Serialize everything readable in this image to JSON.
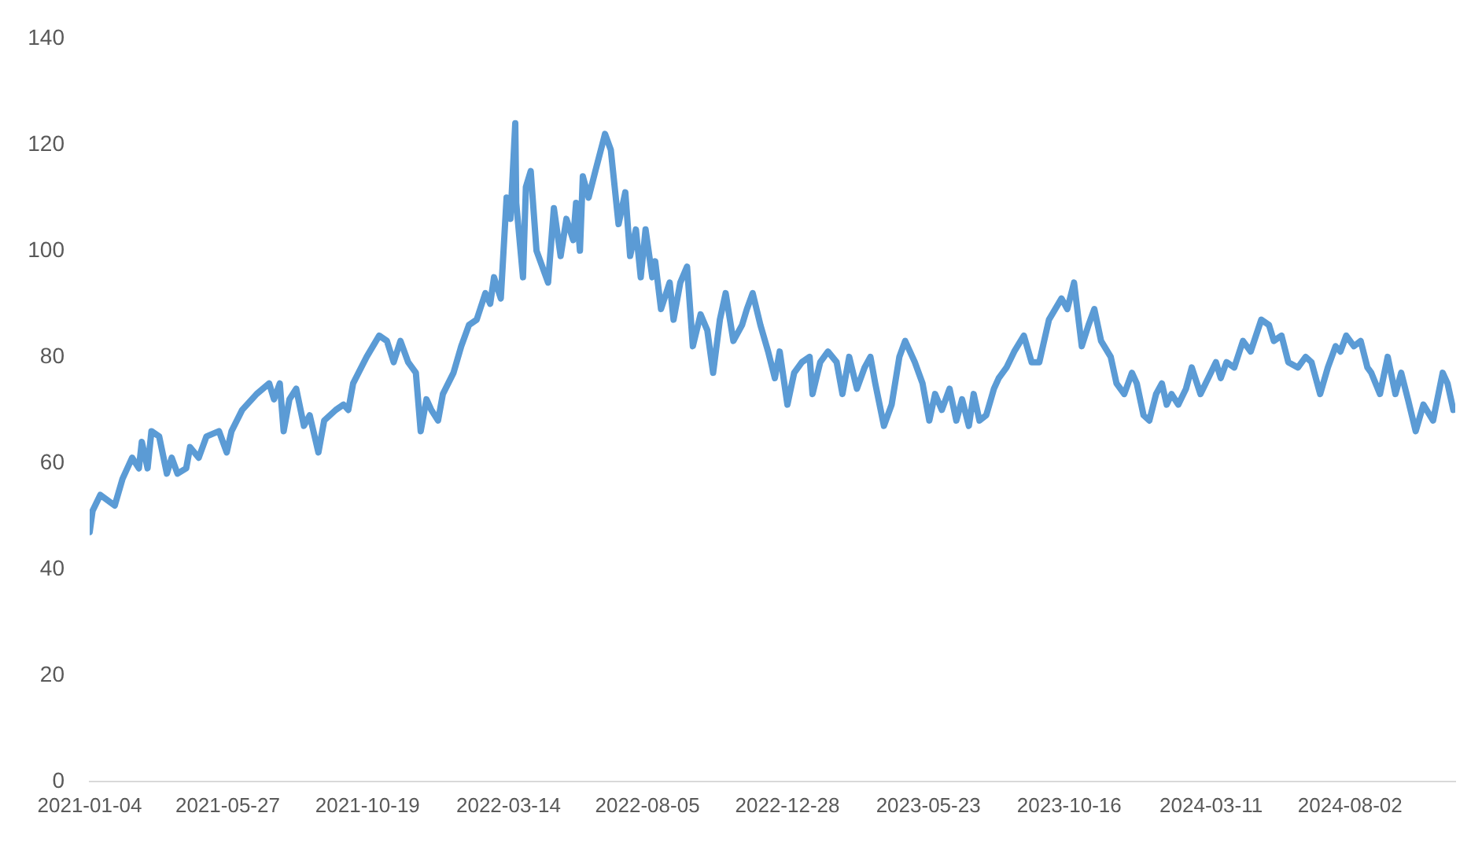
{
  "chart_data": {
    "type": "line",
    "color": "#5b9bd5",
    "marker": "none",
    "grid": false,
    "x": [
      "2021-01-04",
      "2021-01-07",
      "2021-01-15",
      "2021-01-30",
      "2021-02-07",
      "2021-02-17",
      "2021-02-24",
      "2021-02-27",
      "2021-03-05",
      "2021-03-09",
      "2021-03-17",
      "2021-03-25",
      "2021-03-30",
      "2021-04-05",
      "2021-04-14",
      "2021-04-18",
      "2021-04-27",
      "2021-05-05",
      "2021-05-18",
      "2021-05-26",
      "2021-05-31",
      "2021-06-11",
      "2021-06-26",
      "2021-07-09",
      "2021-07-14",
      "2021-07-20",
      "2021-07-24",
      "2021-07-30",
      "2021-08-06",
      "2021-08-14",
      "2021-08-20",
      "2021-08-29",
      "2021-09-04",
      "2021-09-16",
      "2021-09-24",
      "2021-09-29",
      "2021-10-04",
      "2021-10-18",
      "2021-10-31",
      "2021-11-08",
      "2021-11-15",
      "2021-11-22",
      "2021-11-30",
      "2021-12-08",
      "2021-12-13",
      "2021-12-19",
      "2021-12-24",
      "2021-12-31",
      "2022-01-05",
      "2022-01-16",
      "2022-01-24",
      "2022-02-01",
      "2022-02-09",
      "2022-02-18",
      "2022-02-23",
      "2022-02-27",
      "2022-03-06",
      "2022-03-12",
      "2022-03-16",
      "2022-03-21",
      "2022-03-22",
      "2022-03-29",
      "2022-04-01",
      "2022-04-06",
      "2022-04-12",
      "2022-04-24",
      "2022-04-30",
      "2022-05-07",
      "2022-05-13",
      "2022-05-20",
      "2022-05-23",
      "2022-05-27",
      "2022-05-30",
      "2022-06-05",
      "2022-06-12",
      "2022-06-22",
      "2022-06-28",
      "2022-07-06",
      "2022-07-13",
      "2022-07-18",
      "2022-07-24",
      "2022-07-29",
      "2022-08-03",
      "2022-08-10",
      "2022-08-13",
      "2022-08-19",
      "2022-08-28",
      "2022-09-01",
      "2022-09-08",
      "2022-09-15",
      "2022-09-21",
      "2022-09-29",
      "2022-10-06",
      "2022-10-12",
      "2022-10-19",
      "2022-10-25",
      "2022-11-02",
      "2022-11-11",
      "2022-11-16",
      "2022-11-22",
      "2022-11-30",
      "2022-12-08",
      "2022-12-15",
      "2022-12-20",
      "2022-12-28",
      "2023-01-04",
      "2023-01-12",
      "2023-01-20",
      "2023-01-23",
      "2023-01-31",
      "2023-02-08",
      "2023-02-17",
      "2023-02-23",
      "2023-03-02",
      "2023-03-10",
      "2023-03-18",
      "2023-03-24",
      "2023-03-29",
      "2023-04-07",
      "2023-04-15",
      "2023-04-23",
      "2023-04-29",
      "2023-05-09",
      "2023-05-17",
      "2023-05-24",
      "2023-05-30",
      "2023-06-06",
      "2023-06-14",
      "2023-06-21",
      "2023-06-27",
      "2023-07-04",
      "2023-07-09",
      "2023-07-15",
      "2023-07-22",
      "2023-07-30",
      "2023-08-04",
      "2023-08-12",
      "2023-08-20",
      "2023-08-30",
      "2023-09-07",
      "2023-09-15",
      "2023-09-25",
      "2023-10-08",
      "2023-10-14",
      "2023-10-21",
      "2023-10-29",
      "2023-11-05",
      "2023-11-11",
      "2023-11-18",
      "2023-11-28",
      "2023-12-04",
      "2023-12-12",
      "2023-12-20",
      "2023-12-25",
      "2024-01-01",
      "2024-01-07",
      "2024-01-14",
      "2024-01-20",
      "2024-01-25",
      "2024-01-30",
      "2024-02-06",
      "2024-02-14",
      "2024-02-20",
      "2024-02-29",
      "2024-03-08",
      "2024-03-16",
      "2024-03-21",
      "2024-03-27",
      "2024-04-04",
      "2024-04-13",
      "2024-04-21",
      "2024-05-02",
      "2024-05-10",
      "2024-05-15",
      "2024-05-23",
      "2024-05-30",
      "2024-06-09",
      "2024-06-17",
      "2024-06-23",
      "2024-07-02",
      "2024-07-10",
      "2024-07-18",
      "2024-07-23",
      "2024-07-29",
      "2024-08-06",
      "2024-08-13",
      "2024-08-20",
      "2024-08-24",
      "2024-09-02",
      "2024-09-10",
      "2024-09-18",
      "2024-09-24",
      "2024-10-01",
      "2024-10-09",
      "2024-10-17",
      "2024-10-27",
      "2024-11-06",
      "2024-11-11",
      "2024-11-17"
    ],
    "values": [
      47,
      51,
      54,
      52,
      57,
      61,
      59,
      64,
      59,
      66,
      65,
      58,
      61,
      58,
      59,
      63,
      61,
      65,
      66,
      62,
      66,
      70,
      73,
      75,
      72,
      75,
      66,
      72,
      74,
      67,
      69,
      62,
      68,
      70,
      71,
      70,
      75,
      80,
      84,
      83,
      79,
      83,
      79,
      77,
      66,
      72,
      70,
      68,
      73,
      77,
      82,
      86,
      87,
      92,
      90,
      95,
      91,
      110,
      106,
      124,
      109,
      95,
      112,
      115,
      100,
      94,
      108,
      99,
      106,
      102,
      109,
      100,
      114,
      110,
      115,
      122,
      119,
      105,
      111,
      99,
      104,
      95,
      104,
      95,
      98,
      89,
      94,
      87,
      94,
      97,
      82,
      88,
      85,
      77,
      87,
      92,
      83,
      86,
      89,
      92,
      86,
      81,
      76,
      81,
      71,
      77,
      79,
      80,
      73,
      79,
      81,
      79,
      73,
      80,
      74,
      78,
      80,
      75,
      67,
      71,
      80,
      83,
      79,
      75,
      68,
      73,
      70,
      74,
      68,
      72,
      67,
      73,
      68,
      69,
      74,
      76,
      78,
      81,
      84,
      79,
      79,
      87,
      91,
      89,
      94,
      82,
      86,
      89,
      83,
      80,
      75,
      73,
      77,
      75,
      69,
      68,
      73,
      75,
      71,
      73,
      71,
      74,
      78,
      73,
      76,
      79,
      76,
      79,
      78,
      83,
      81,
      87,
      86,
      83,
      84,
      79,
      78,
      80,
      79,
      73,
      78,
      82,
      81,
      84,
      82,
      83,
      78,
      77,
      73,
      80,
      73,
      77,
      72,
      66,
      71,
      68,
      77,
      75,
      70
    ],
    "xlim": [
      "2021-01-04",
      "2024-11-19"
    ],
    "xticks": [
      "2021-01-04",
      "2021-05-27",
      "2021-10-19",
      "2022-03-14",
      "2022-08-05",
      "2022-12-28",
      "2023-05-23",
      "2023-10-16",
      "2024-03-11",
      "2024-08-02"
    ],
    "ylim": [
      0,
      140
    ],
    "yticks": [
      0,
      20,
      40,
      60,
      80,
      100,
      120,
      140
    ]
  }
}
